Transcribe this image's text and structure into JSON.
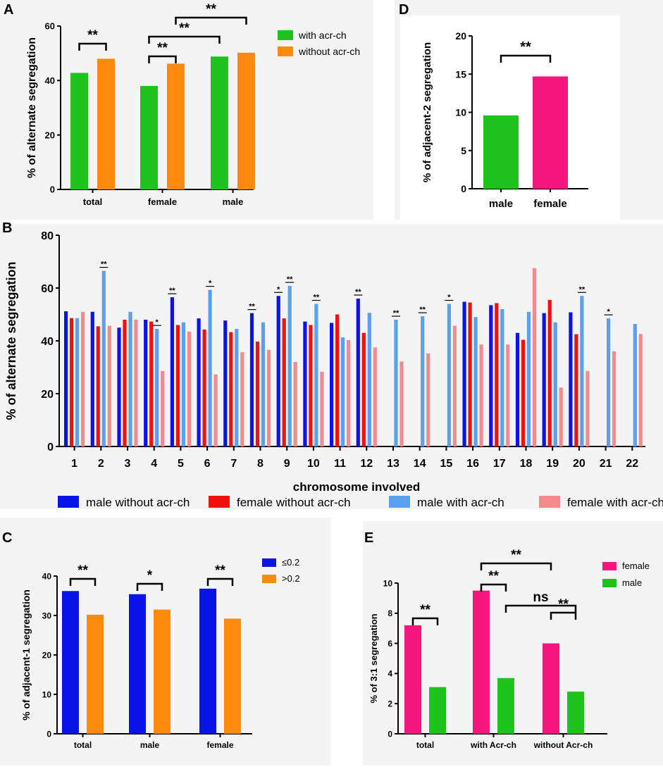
{
  "chart_data": [
    {
      "panel": "A",
      "type": "bar",
      "categories": [
        "total",
        "female",
        "male"
      ],
      "series": [
        {
          "name": "with acr-ch",
          "values": [
            42.8,
            38.0,
            48.8
          ],
          "color": "#1ec31e"
        },
        {
          "name": "without acr-ch",
          "values": [
            48.0,
            46.2,
            50.2
          ],
          "color": "#ff8a0d"
        }
      ],
      "ylabel": "% of alternate segregation",
      "ylim": [
        0,
        60
      ],
      "yticks": [
        0,
        20,
        40,
        60
      ],
      "significance": [
        {
          "label": "**",
          "from": "total.0",
          "to": "total.1"
        },
        {
          "label": "**",
          "from": "female.0",
          "to": "female.1"
        },
        {
          "label": "**",
          "from": "female.0",
          "to": "male.0"
        },
        {
          "label": "**",
          "from": "female.1",
          "to": "male.1"
        }
      ]
    },
    {
      "panel": "D",
      "type": "bar",
      "categories": [
        "male",
        "female"
      ],
      "values": [
        9.6,
        14.7
      ],
      "colors": [
        "#1ec31e",
        "#f5177e"
      ],
      "ylabel": "% of adjacent-2 segregation",
      "ylim": [
        0,
        20
      ],
      "yticks": [
        0,
        5,
        10,
        15,
        20
      ],
      "significance": [
        {
          "label": "**",
          "from": "male",
          "to": "female"
        }
      ]
    },
    {
      "panel": "B",
      "type": "bar",
      "categories": [
        "1",
        "2",
        "3",
        "4",
        "5",
        "6",
        "7",
        "8",
        "9",
        "10",
        "11",
        "12",
        "13",
        "14",
        "15",
        "16",
        "17",
        "18",
        "19",
        "20",
        "21",
        "22"
      ],
      "series": [
        {
          "name": "male without acr-ch",
          "color": "#0a14e6",
          "values": [
            51.2,
            51.0,
            45.0,
            48.0,
            56.5,
            48.5,
            47.7,
            50.5,
            57.0,
            47.3,
            46.8,
            56.0,
            null,
            null,
            null,
            54.8,
            53.5,
            43.0,
            50.5,
            50.8,
            null,
            null
          ]
        },
        {
          "name": "female without acr-ch",
          "color": "#f0100c",
          "values": [
            48.6,
            45.5,
            48.0,
            47.3,
            46.0,
            44.3,
            43.3,
            39.7,
            48.5,
            46.0,
            50.0,
            43.0,
            null,
            null,
            null,
            54.5,
            54.3,
            40.4,
            55.5,
            42.5,
            null,
            null
          ]
        },
        {
          "name": "male with acr-ch",
          "color": "#5aa0f0",
          "values": [
            48.6,
            66.5,
            51.0,
            44.5,
            47.0,
            59.3,
            44.5,
            47.0,
            60.8,
            54.0,
            41.3,
            50.6,
            48.0,
            49.3,
            54.0,
            49.0,
            52.0,
            51.0,
            47.0,
            57.0,
            48.5,
            46.4
          ]
        },
        {
          "name": "female with acr-ch",
          "color": "#f58a8c",
          "values": [
            51.0,
            45.7,
            48.0,
            28.6,
            43.5,
            27.3,
            35.7,
            36.6,
            32.0,
            28.3,
            40.3,
            37.5,
            32.2,
            35.2,
            45.7,
            38.6,
            38.6,
            67.5,
            22.3,
            28.6,
            36.0,
            42.6
          ]
        }
      ],
      "xlabel": "chromosome involved",
      "ylabel": "% of alternate segregation",
      "ylim": [
        0,
        80
      ],
      "yticks": [
        0,
        20,
        40,
        60,
        80
      ],
      "significance": [
        {
          "chromosome": "2",
          "label": "**",
          "over": "male with acr-ch"
        },
        {
          "chromosome": "4",
          "label": "*",
          "over": "male with acr-ch"
        },
        {
          "chromosome": "5",
          "label": "**",
          "over": "male without acr-ch"
        },
        {
          "chromosome": "6",
          "label": "*",
          "over": "male with acr-ch"
        },
        {
          "chromosome": "8",
          "label": "**",
          "over": "male without acr-ch"
        },
        {
          "chromosome": "9",
          "label": "*",
          "over": "male without acr-ch"
        },
        {
          "chromosome": "9",
          "label": "**",
          "over": "male with acr-ch"
        },
        {
          "chromosome": "10",
          "label": "**",
          "over": "male with acr-ch"
        },
        {
          "chromosome": "12",
          "label": "**",
          "over": "male without acr-ch"
        },
        {
          "chromosome": "13",
          "label": "**",
          "over": "male with acr-ch"
        },
        {
          "chromosome": "14",
          "label": "**",
          "over": "male with acr-ch"
        },
        {
          "chromosome": "15",
          "label": "*",
          "over": "male with acr-ch"
        },
        {
          "chromosome": "20",
          "label": "**",
          "over": "male with acr-ch"
        },
        {
          "chromosome": "21",
          "label": "*",
          "over": "male with acr-ch"
        }
      ]
    },
    {
      "panel": "C",
      "type": "bar",
      "categories": [
        "total",
        "male",
        "female"
      ],
      "series": [
        {
          "name": "≤0.2",
          "values": [
            36.2,
            35.4,
            36.8
          ],
          "color": "#0a14e6"
        },
        {
          "name": ">0.2",
          "values": [
            30.2,
            31.5,
            29.2
          ],
          "color": "#ff8a0d"
        }
      ],
      "ylabel": "% of adjacent-1 segregation",
      "ylim": [
        0,
        40
      ],
      "yticks": [
        0,
        10,
        20,
        30,
        40
      ],
      "significance": [
        {
          "label": "**",
          "from": "total.0",
          "to": "total.1"
        },
        {
          "label": "*",
          "from": "male.0",
          "to": "male.1"
        },
        {
          "label": "**",
          "from": "female.0",
          "to": "female.1"
        }
      ]
    },
    {
      "panel": "E",
      "type": "bar",
      "categories": [
        "total",
        "with Acr-ch",
        "without Acr-ch"
      ],
      "series": [
        {
          "name": "female",
          "values": [
            7.2,
            9.5,
            6.0
          ],
          "color": "#f5177e"
        },
        {
          "name": "male",
          "values": [
            3.1,
            3.7,
            2.8
          ],
          "color": "#1ec31e"
        }
      ],
      "ylabel": "% of 3:1 segregation",
      "ylim": [
        0,
        10
      ],
      "yticks": [
        0,
        2,
        4,
        6,
        8,
        10
      ],
      "significance": [
        {
          "label": "**",
          "from": "total.0",
          "to": "total.1"
        },
        {
          "label": "**",
          "from": "with Acr-ch.0",
          "to": "with Acr-ch.1"
        },
        {
          "label": "**",
          "from": "with Acr-ch.0",
          "to": "without Acr-ch.0"
        },
        {
          "label": "ns",
          "from": "with Acr-ch.1",
          "to": "without Acr-ch.1"
        },
        {
          "label": "**",
          "from": "without Acr-ch.0",
          "to": "without Acr-ch.1"
        }
      ]
    }
  ]
}
